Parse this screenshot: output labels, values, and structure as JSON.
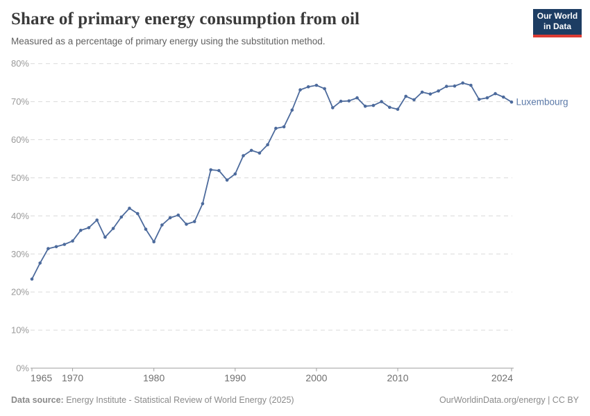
{
  "header": {
    "title": "Share of primary energy consumption from oil",
    "subtitle": "Measured as a percentage of primary energy using the substitution method.",
    "logo": {
      "line1": "Our World",
      "line2": "in Data"
    }
  },
  "colors": {
    "line": "#4c6a9c",
    "entity_label": "#5b79a8",
    "logo_navy": "#1d3d63",
    "logo_red": "#dc3b33",
    "grid": "#dadada",
    "axis_text": "#9a9a9a"
  },
  "chart_data": {
    "type": "line",
    "title": "Share of primary energy consumption from oil",
    "subtitle": "Measured as a percentage of primary energy using the substitution method.",
    "xlabel": "",
    "ylabel": "",
    "ylim": [
      0,
      80
    ],
    "yticks": [
      0,
      10,
      20,
      30,
      40,
      50,
      60,
      70,
      80
    ],
    "ytick_suffix": "%",
    "xticks": [
      1965,
      1970,
      1980,
      1990,
      2000,
      2010,
      2024
    ],
    "grid": "horizontal-dashed",
    "legend_position": "end-of-line-label",
    "x": [
      1965,
      1966,
      1967,
      1968,
      1969,
      1970,
      1971,
      1972,
      1973,
      1974,
      1975,
      1976,
      1977,
      1978,
      1979,
      1980,
      1981,
      1982,
      1983,
      1984,
      1985,
      1986,
      1987,
      1988,
      1989,
      1990,
      1991,
      1992,
      1993,
      1994,
      1995,
      1996,
      1997,
      1998,
      1999,
      2000,
      2001,
      2002,
      2003,
      2004,
      2005,
      2006,
      2007,
      2008,
      2009,
      2010,
      2011,
      2012,
      2013,
      2014,
      2015,
      2016,
      2017,
      2018,
      2019,
      2020,
      2021,
      2022,
      2023,
      2024
    ],
    "series": [
      {
        "name": "Luxembourg",
        "color": "#4c6a9c",
        "values": [
          23.4,
          27.6,
          31.4,
          31.9,
          32.5,
          33.4,
          36.2,
          36.9,
          38.9,
          34.4,
          36.7,
          39.7,
          42.0,
          40.6,
          36.5,
          33.2,
          37.6,
          39.5,
          40.2,
          37.8,
          38.5,
          43.2,
          52.1,
          51.9,
          49.4,
          51.0,
          55.8,
          57.2,
          56.5,
          58.7,
          63.0,
          63.4,
          67.8,
          73.1,
          73.9,
          74.3,
          73.4,
          68.4,
          70.1,
          70.2,
          71.0,
          68.8,
          69.0,
          70.0,
          68.5,
          68.0,
          71.4,
          70.5,
          72.5,
          72.0,
          72.8,
          74.0,
          74.1,
          74.9,
          74.3,
          70.6,
          71.0,
          72.1,
          71.2,
          69.9
        ]
      }
    ]
  },
  "footer": {
    "source_label": "Data source:",
    "source_text": " Energy Institute - Statistical Review of World Energy (2025)",
    "link_text": "OurWorldinData.org/energy | CC BY"
  }
}
